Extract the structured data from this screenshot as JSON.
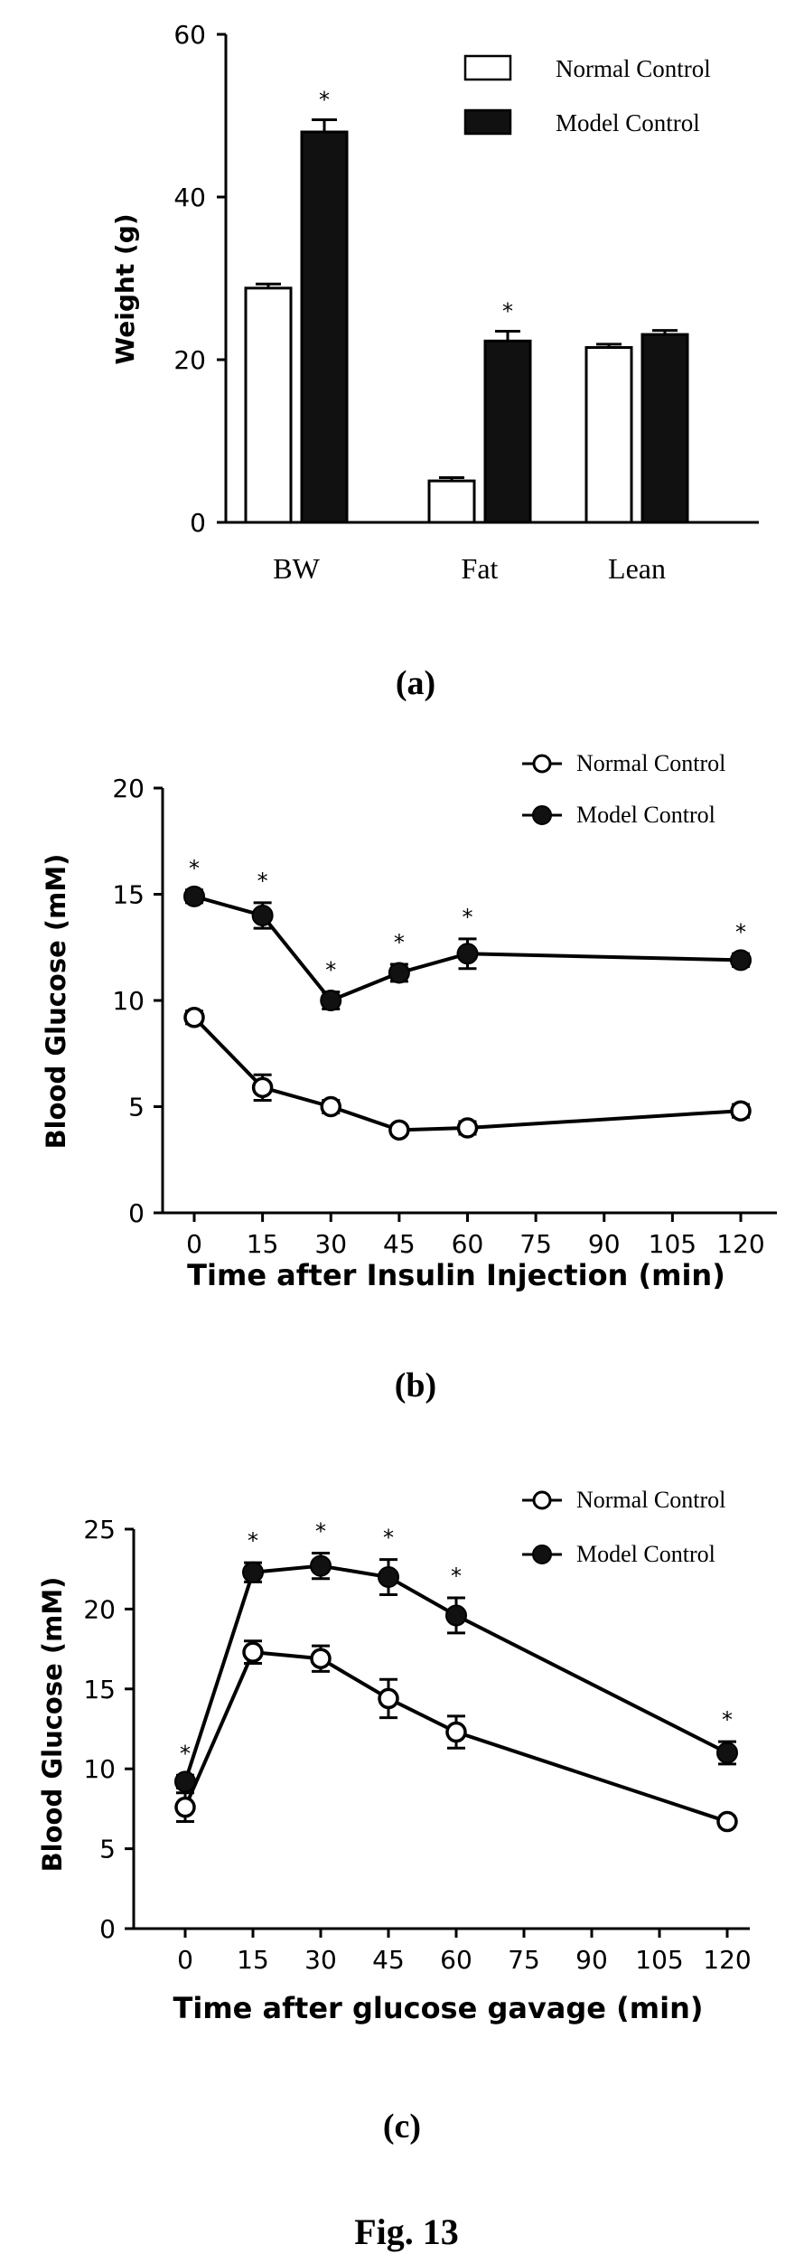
{
  "figure_title": "Fig. 13",
  "chart_data": [
    {
      "type": "bar",
      "panel_label": "(a)",
      "ylabel": "Weight (g)",
      "xlabel": "",
      "ylim": [
        0,
        60
      ],
      "yticks": [
        0,
        20,
        40,
        60
      ],
      "categories": [
        "BW",
        "Fat",
        "Lean"
      ],
      "legend_position": "top-right",
      "series": [
        {
          "name": "Normal Control",
          "fill": "#ffffff",
          "values": [
            28.8,
            5.1,
            21.5
          ],
          "errors": [
            0.5,
            0.4,
            0.4
          ]
        },
        {
          "name": "Model Control",
          "fill": "#111111",
          "values": [
            48.0,
            22.3,
            23.1
          ],
          "errors": [
            1.5,
            1.2,
            0.5
          ]
        }
      ],
      "significance": [
        "*",
        "*",
        ""
      ]
    },
    {
      "type": "line",
      "panel_label": "(b)",
      "ylabel": "Blood Glucose (mM)",
      "xlabel": "Time after Insulin Injection (min)",
      "ylim": [
        0,
        20
      ],
      "yticks": [
        0,
        5,
        10,
        15,
        20
      ],
      "xticks": [
        0,
        15,
        30,
        45,
        60,
        75,
        90,
        105,
        120
      ],
      "legend_position": "top-right",
      "x": [
        0,
        15,
        30,
        45,
        60,
        120
      ],
      "series": [
        {
          "name": "Normal Control",
          "marker": "open",
          "values": [
            9.2,
            5.9,
            5.0,
            3.9,
            4.0,
            4.8
          ],
          "errors": [
            0.3,
            0.6,
            0.3,
            0.2,
            0.3,
            0.3
          ]
        },
        {
          "name": "Model Control",
          "marker": "filled",
          "values": [
            14.9,
            14.0,
            10.0,
            11.3,
            12.2,
            11.9
          ],
          "errors": [
            0.3,
            0.6,
            0.4,
            0.4,
            0.7,
            0.3
          ]
        }
      ],
      "significance": [
        "*",
        "*",
        "*",
        "*",
        "*",
        "*"
      ]
    },
    {
      "type": "line",
      "panel_label": "(c)",
      "ylabel": "Blood Glucose (mM)",
      "xlabel": "Time after glucose gavage (min)",
      "ylim": [
        0,
        25
      ],
      "yticks": [
        0,
        5,
        10,
        15,
        20,
        25
      ],
      "xticks": [
        0,
        15,
        30,
        45,
        60,
        75,
        90,
        105,
        120
      ],
      "legend_position": "top-right",
      "x": [
        0,
        15,
        30,
        45,
        60,
        120
      ],
      "series": [
        {
          "name": "Normal Control",
          "marker": "open",
          "values": [
            7.6,
            17.3,
            16.9,
            14.4,
            12.3,
            6.7
          ],
          "errors": [
            0.9,
            0.7,
            0.8,
            1.2,
            1.0,
            0.3
          ]
        },
        {
          "name": "Model Control",
          "marker": "filled",
          "values": [
            9.2,
            22.3,
            22.7,
            22.0,
            19.6,
            11.0
          ],
          "errors": [
            0.4,
            0.6,
            0.8,
            1.1,
            1.1,
            0.7
          ]
        }
      ],
      "significance": [
        "*",
        "*",
        "*",
        "*",
        "*",
        "*"
      ]
    }
  ]
}
